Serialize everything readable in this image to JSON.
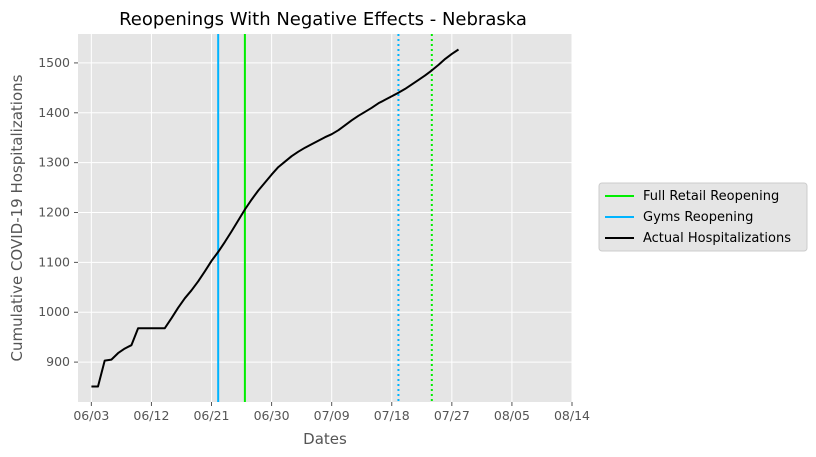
{
  "chart_data": {
    "type": "line",
    "title": "Reopenings With Negative Effects - Nebraska",
    "xlabel": "Dates",
    "ylabel": "Cumulative COVID-19 Hospitalizations",
    "x_ticks": [
      "06/03",
      "06/12",
      "06/21",
      "06/30",
      "07/09",
      "07/18",
      "07/27",
      "08/05",
      "08/14"
    ],
    "y_ticks": [
      900,
      1000,
      1100,
      1200,
      1300,
      1400,
      1500
    ],
    "xlim": [
      "06/01",
      "08/14"
    ],
    "ylim": [
      820,
      1558
    ],
    "grid": true,
    "legend_position": "right",
    "series": [
      {
        "name": "Actual Hospitalizations",
        "color": "#000000",
        "x": [
          "06/03",
          "06/04",
          "06/05",
          "06/06",
          "06/07",
          "06/08",
          "06/09",
          "06/10",
          "06/11",
          "06/12",
          "06/13",
          "06/14",
          "06/15",
          "06/16",
          "06/17",
          "06/18",
          "06/19",
          "06/20",
          "06/21",
          "06/22",
          "06/23",
          "06/24",
          "06/25",
          "06/26",
          "06/27",
          "06/28",
          "06/29",
          "06/30",
          "07/01",
          "07/02",
          "07/03",
          "07/04",
          "07/05",
          "07/06",
          "07/07",
          "07/08",
          "07/09",
          "07/10",
          "07/11",
          "07/12",
          "07/13",
          "07/14",
          "07/15",
          "07/16",
          "07/17",
          "07/18",
          "07/19",
          "07/20",
          "07/21",
          "07/22",
          "07/23",
          "07/24",
          "07/25",
          "07/26",
          "07/27",
          "07/28"
        ],
        "values": [
          851,
          851,
          903,
          905,
          918,
          927,
          934,
          968,
          968,
          968,
          968,
          968,
          988,
          1009,
          1028,
          1044,
          1062,
          1082,
          1103,
          1121,
          1141,
          1162,
          1184,
          1206,
          1226,
          1244,
          1260,
          1276,
          1291,
          1302,
          1313,
          1322,
          1330,
          1337,
          1344,
          1351,
          1357,
          1365,
          1375,
          1385,
          1394,
          1402,
          1410,
          1419,
          1426,
          1433,
          1440,
          1448,
          1457,
          1466,
          1475,
          1485,
          1496,
          1508,
          1518,
          1527
        ]
      }
    ],
    "vlines": [
      {
        "name": "Full Retail Reopening",
        "x": "06/26",
        "color": "#00ee00",
        "style": "solid"
      },
      {
        "name": "Gyms Reopening",
        "x": "06/22",
        "color": "#00b4ff",
        "style": "solid"
      },
      {
        "name": "Full Retail Reopening (dotted)",
        "x": "07/24",
        "color": "#00ee00",
        "style": "dotted"
      },
      {
        "name": "Gyms Reopening (dotted)",
        "x": "07/19",
        "color": "#00b4ff",
        "style": "dotted"
      }
    ],
    "legend": [
      {
        "label": "Full Retail Reopening",
        "color": "#00ee00"
      },
      {
        "label": "Gyms Reopening",
        "color": "#00b4ff"
      },
      {
        "label": "Actual Hospitalizations",
        "color": "#000000"
      }
    ]
  }
}
